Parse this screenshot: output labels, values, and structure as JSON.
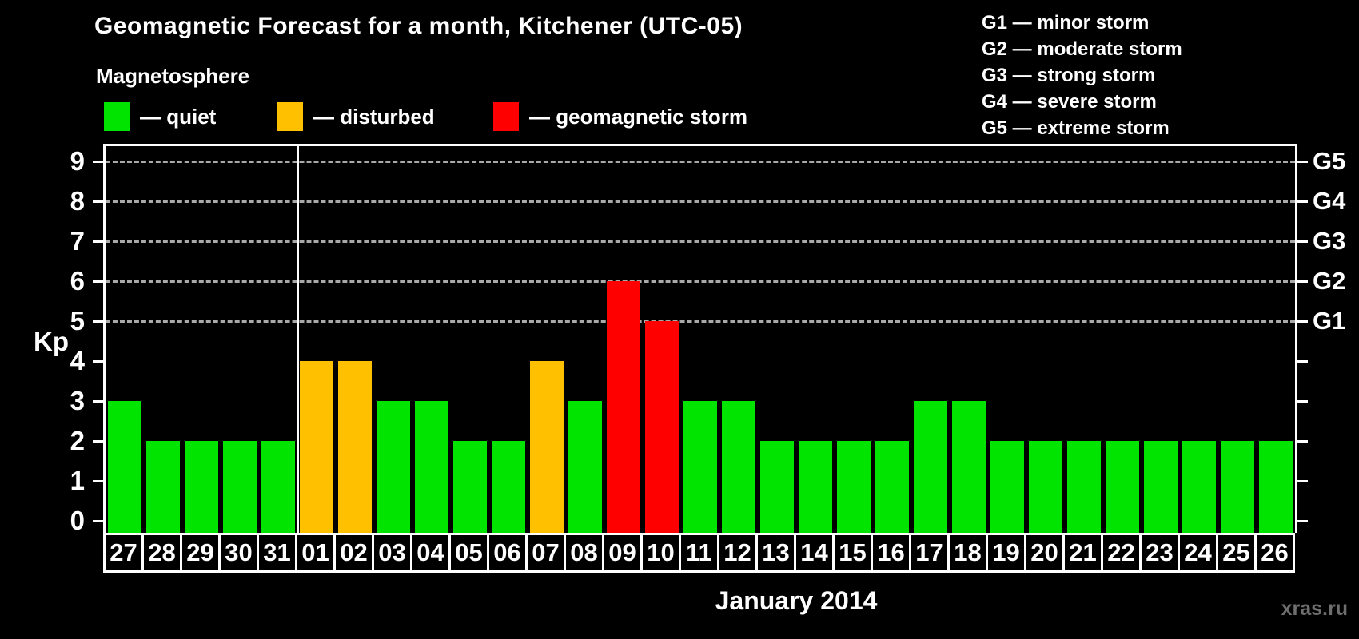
{
  "header": {
    "title": "Geomagnetic Forecast for a month, Kitchener (UTC-05)",
    "subtitle": "Magnetosphere"
  },
  "legend": {
    "items": [
      {
        "key": "quiet",
        "swatch_color": "#00e400",
        "label": "— quiet"
      },
      {
        "key": "disturbed",
        "swatch_color": "#ffc000",
        "label": "— disturbed"
      },
      {
        "key": "storm",
        "swatch_color": "#ff0000",
        "label": "— geomagnetic storm"
      }
    ]
  },
  "storm_scale": {
    "items": [
      "G1 — minor storm",
      "G2 — moderate storm",
      "G3 — strong storm",
      "G4 — severe storm",
      "G5 — extreme storm"
    ]
  },
  "chart_data": {
    "type": "bar",
    "title": "Geomagnetic Forecast for a month, Kitchener (UTC-05)",
    "xlabel": "January 2014",
    "ylabel": "Kp",
    "ylim": [
      0,
      9
    ],
    "y_ticks": [
      0,
      1,
      2,
      3,
      4,
      5,
      6,
      7,
      8,
      9
    ],
    "gridlines_at": [
      5,
      6,
      7,
      8,
      9
    ],
    "grid": "dashed horizontal lines at Kp 5 through 9",
    "legend_position": "top-left",
    "right_axis_labels": [
      {
        "value": 5,
        "label": "G1"
      },
      {
        "value": 6,
        "label": "G2"
      },
      {
        "value": 7,
        "label": "G3"
      },
      {
        "value": 8,
        "label": "G4"
      },
      {
        "value": 9,
        "label": "G5"
      }
    ],
    "month_separator_after_index": 4,
    "categories": [
      "27",
      "28",
      "29",
      "30",
      "31",
      "01",
      "02",
      "03",
      "04",
      "05",
      "06",
      "07",
      "08",
      "09",
      "10",
      "11",
      "12",
      "13",
      "14",
      "15",
      "16",
      "17",
      "18",
      "19",
      "20",
      "21",
      "22",
      "23",
      "24",
      "25",
      "26"
    ],
    "values": [
      3,
      2,
      2,
      2,
      2,
      4,
      4,
      3,
      3,
      2,
      2,
      4,
      3,
      6,
      5,
      3,
      3,
      2,
      2,
      2,
      2,
      3,
      3,
      2,
      2,
      2,
      2,
      2,
      2,
      2,
      2
    ],
    "statuses": [
      "quiet",
      "quiet",
      "quiet",
      "quiet",
      "quiet",
      "disturbed",
      "disturbed",
      "quiet",
      "quiet",
      "quiet",
      "quiet",
      "disturbed",
      "quiet",
      "storm",
      "storm",
      "quiet",
      "quiet",
      "quiet",
      "quiet",
      "quiet",
      "quiet",
      "quiet",
      "quiet",
      "quiet",
      "quiet",
      "quiet",
      "quiet",
      "quiet",
      "quiet",
      "quiet",
      "quiet"
    ],
    "colors": {
      "quiet": "#00e400",
      "disturbed": "#ffc000",
      "storm": "#ff0000"
    }
  },
  "footer": {
    "watermark": "xras.ru"
  }
}
